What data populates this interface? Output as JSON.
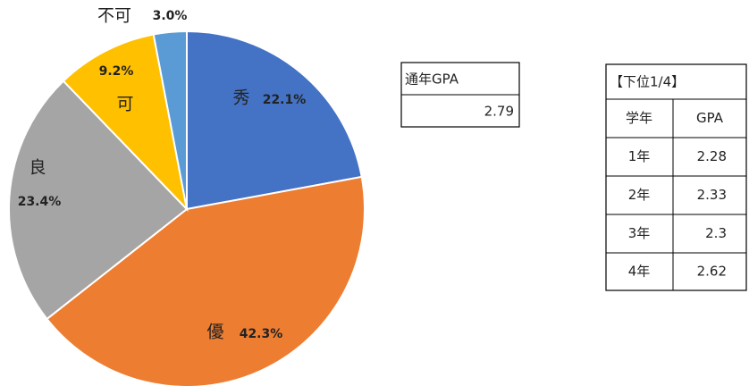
{
  "chart_data": {
    "type": "pie",
    "categories": [
      "秀",
      "優",
      "良",
      "可",
      "不可"
    ],
    "values": [
      22.1,
      42.3,
      23.4,
      9.2,
      3.0
    ],
    "value_labels": [
      "22.1%",
      "42.3%",
      "23.4%",
      "9.2%",
      "3.0%"
    ],
    "colors": [
      "#4472c4",
      "#ed7d31",
      "#a5a5a5",
      "#ffc000",
      "#5b9bd5"
    ]
  },
  "annual_gpa": {
    "header": "通年GPA",
    "value": 2.79
  },
  "lower_quarter": {
    "title": "【下位1/4】",
    "columns": [
      "学年",
      "GPA"
    ],
    "rows": [
      [
        "1年",
        2.28
      ],
      [
        "2年",
        2.33
      ],
      [
        "3年",
        2.3
      ],
      [
        "4年",
        2.62
      ]
    ]
  }
}
